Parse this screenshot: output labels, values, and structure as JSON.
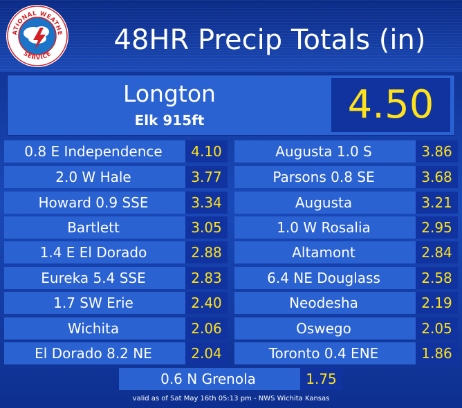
{
  "header": {
    "title": "48HR Precip Totals (in)",
    "logo_icon": "nws-logo-icon",
    "logo_text": "NATIONAL WEATHER SERVICE"
  },
  "hero": {
    "name": "Longton",
    "sub": "Elk 915ft",
    "value": "4.50"
  },
  "stations": {
    "left": [
      {
        "name": "0.8 E Independence",
        "value": "4.10"
      },
      {
        "name": "2.0 W Hale",
        "value": "3.77"
      },
      {
        "name": "Howard 0.9 SSE",
        "value": "3.34"
      },
      {
        "name": "Bartlett",
        "value": "3.05"
      },
      {
        "name": "1.4 E El Dorado",
        "value": "2.88"
      },
      {
        "name": "Eureka 5.4 SSE",
        "value": "2.83"
      },
      {
        "name": "1.7 SW Erie",
        "value": "2.40"
      },
      {
        "name": "Wichita",
        "value": "2.06"
      },
      {
        "name": "El Dorado 8.2 NE",
        "value": "2.04"
      }
    ],
    "right": [
      {
        "name": "Augusta 1.0 S",
        "value": "3.86"
      },
      {
        "name": "Parsons 0.8 SE",
        "value": "3.68"
      },
      {
        "name": "Augusta",
        "value": "3.21"
      },
      {
        "name": "1.0 W Rosalia",
        "value": "2.95"
      },
      {
        "name": "Altamont",
        "value": "2.84"
      },
      {
        "name": "6.4 NE Douglass",
        "value": "2.58"
      },
      {
        "name": "Neodesha",
        "value": "2.19"
      },
      {
        "name": "Oswego",
        "value": "2.05"
      },
      {
        "name": "Toronto 0.4 ENE",
        "value": "1.86"
      }
    ],
    "center": {
      "name": "0.6 N Grenola",
      "value": "1.75"
    }
  },
  "footer": {
    "text": "valid as of Sat May 16th 05:13 pm - NWS Wichita Kansas"
  },
  "colors": {
    "background": "#1a49b8",
    "row": "#2a62d2",
    "value_box": "#1133a0",
    "value_text": "#ffe21a"
  }
}
